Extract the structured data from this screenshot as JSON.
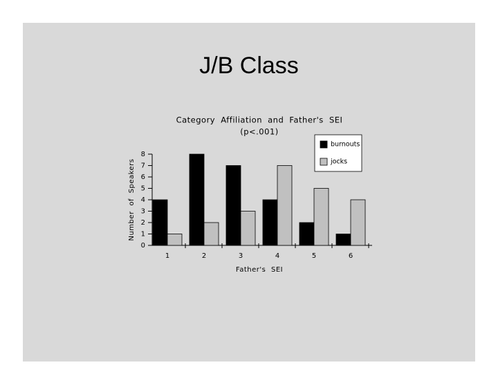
{
  "slide_title": "J/B Class",
  "chart_data": {
    "type": "bar",
    "title": "Category Affiliation and Father's SEI",
    "subtitle": "(p<.001)",
    "x_label": "Father's SEI",
    "y_label": "Number of Speakers",
    "categories": [
      "1",
      "2",
      "3",
      "4",
      "5",
      "6"
    ],
    "series": [
      {
        "name": "burnouts",
        "color": "#000000",
        "values": [
          4,
          8,
          7,
          4,
          2,
          1
        ]
      },
      {
        "name": "jocks",
        "color": "#c0c0c0",
        "values": [
          1,
          2,
          3,
          7,
          5,
          4
        ]
      }
    ],
    "ylim": [
      0,
      8
    ],
    "yticks": [
      0,
      1,
      2,
      3,
      4,
      5,
      6,
      7,
      8
    ],
    "grid": false,
    "legend": "upper right"
  }
}
